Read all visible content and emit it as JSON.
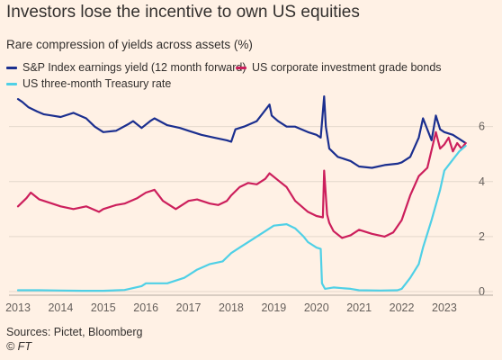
{
  "header": {
    "title": "Investors lose the incentive to own US equities",
    "subtitle": "Rare compression of yields across assets (%)"
  },
  "footer": {
    "sources": "Sources: Pictet, Bloomberg",
    "credit": "© FT"
  },
  "colors": {
    "background": "#fff1e5",
    "sp_earnings": "#1b2f8f",
    "corp_bonds": "#cc1f5c",
    "treasury": "#4fd0e6",
    "grid": "#e4d8cc"
  },
  "chart_data": {
    "type": "line",
    "title": "Rare compression of yields across assets (%)",
    "xlabel": "",
    "ylabel": "",
    "xlim": [
      2013.0,
      2023.55
    ],
    "ylim": [
      0,
      7.2
    ],
    "y_ticks": [
      0,
      2,
      4,
      6
    ],
    "y_tick_labels": [
      "0",
      "2",
      "4",
      "6"
    ],
    "x_ticks": [
      2013,
      2014,
      2015,
      2016,
      2017,
      2018,
      2019,
      2020,
      2021,
      2022,
      2023
    ],
    "x_tick_labels": [
      "2013",
      "2014",
      "2015",
      "2016",
      "2017",
      "2018",
      "2019",
      "2020",
      "2021",
      "2022",
      "2023"
    ],
    "y_axis_position": "right",
    "grid": true,
    "legend_placement": "top-left",
    "series": [
      {
        "name": "S&P Index earnings yield (12 month forward)",
        "color": "#1b2f8f",
        "x": [
          2013.0,
          2013.1,
          2013.25,
          2013.45,
          2013.6,
          2013.8,
          2014.0,
          2014.3,
          2014.6,
          2014.8,
          2015.0,
          2015.3,
          2015.6,
          2015.7,
          2015.9,
          2016.1,
          2016.2,
          2016.5,
          2016.8,
          2017.0,
          2017.3,
          2017.6,
          2017.9,
          2018.0,
          2018.1,
          2018.3,
          2018.6,
          2018.9,
          2018.95,
          2019.1,
          2019.3,
          2019.5,
          2019.8,
          2020.0,
          2020.1,
          2020.18,
          2020.22,
          2020.3,
          2020.5,
          2020.8,
          2021.0,
          2021.3,
          2021.6,
          2021.9,
          2022.0,
          2022.2,
          2022.4,
          2022.5,
          2022.7,
          2022.8,
          2022.9,
          2023.0,
          2023.2,
          2023.4,
          2023.5
        ],
        "y": [
          7.0,
          6.9,
          6.7,
          6.55,
          6.45,
          6.4,
          6.35,
          6.5,
          6.3,
          6.0,
          5.8,
          5.85,
          6.1,
          6.2,
          5.95,
          6.2,
          6.3,
          6.05,
          5.95,
          5.85,
          5.7,
          5.6,
          5.5,
          5.45,
          5.9,
          6.0,
          6.2,
          6.8,
          6.4,
          6.2,
          6.0,
          6.0,
          5.8,
          5.7,
          5.6,
          7.1,
          6.0,
          5.2,
          4.9,
          4.75,
          4.55,
          4.5,
          4.6,
          4.65,
          4.7,
          4.9,
          5.6,
          6.3,
          5.5,
          6.4,
          5.9,
          5.8,
          5.7,
          5.5,
          5.4
        ]
      },
      {
        "name": "US corporate investment grade bonds",
        "color": "#cc1f5c",
        "x": [
          2013.0,
          2013.2,
          2013.3,
          2013.5,
          2013.8,
          2014.0,
          2014.3,
          2014.6,
          2014.9,
          2015.0,
          2015.3,
          2015.5,
          2015.8,
          2016.0,
          2016.2,
          2016.4,
          2016.7,
          2016.8,
          2017.0,
          2017.2,
          2017.5,
          2017.7,
          2017.9,
          2018.0,
          2018.2,
          2018.4,
          2018.6,
          2018.8,
          2018.9,
          2019.1,
          2019.3,
          2019.5,
          2019.8,
          2020.0,
          2020.15,
          2020.18,
          2020.25,
          2020.3,
          2020.4,
          2020.6,
          2020.8,
          2021.0,
          2021.3,
          2021.6,
          2021.8,
          2022.0,
          2022.2,
          2022.4,
          2022.6,
          2022.8,
          2022.9,
          2023.0,
          2023.1,
          2023.2,
          2023.3,
          2023.4,
          2023.5
        ],
        "y": [
          3.1,
          3.4,
          3.6,
          3.35,
          3.2,
          3.1,
          3.0,
          3.1,
          2.9,
          3.0,
          3.15,
          3.2,
          3.4,
          3.6,
          3.7,
          3.3,
          3.0,
          3.1,
          3.3,
          3.35,
          3.2,
          3.15,
          3.3,
          3.5,
          3.8,
          3.95,
          3.9,
          4.1,
          4.3,
          4.05,
          3.8,
          3.3,
          2.9,
          2.75,
          2.7,
          4.4,
          2.8,
          2.5,
          2.2,
          1.95,
          2.05,
          2.25,
          2.1,
          2.0,
          2.15,
          2.6,
          3.5,
          4.2,
          4.5,
          5.8,
          5.2,
          5.35,
          5.6,
          5.1,
          5.4,
          5.2,
          5.4
        ]
      },
      {
        "name": "US three-month Treasury rate",
        "color": "#4fd0e6",
        "x": [
          2013.0,
          2013.5,
          2014.0,
          2014.5,
          2015.0,
          2015.5,
          2015.9,
          2016.0,
          2016.5,
          2016.9,
          2017.0,
          2017.2,
          2017.5,
          2017.8,
          2018.0,
          2018.2,
          2018.5,
          2018.8,
          2019.0,
          2019.3,
          2019.5,
          2019.7,
          2019.8,
          2020.0,
          2020.1,
          2020.13,
          2020.2,
          2020.4,
          2020.8,
          2021.0,
          2021.5,
          2021.9,
          2022.0,
          2022.1,
          2022.2,
          2022.4,
          2022.5,
          2022.7,
          2022.9,
          2023.0,
          2023.2,
          2023.35,
          2023.5
        ],
        "y": [
          0.05,
          0.05,
          0.04,
          0.03,
          0.03,
          0.06,
          0.2,
          0.3,
          0.3,
          0.5,
          0.6,
          0.8,
          1.0,
          1.1,
          1.4,
          1.6,
          1.9,
          2.2,
          2.4,
          2.45,
          2.3,
          2.0,
          1.8,
          1.6,
          1.55,
          0.3,
          0.1,
          0.15,
          0.1,
          0.05,
          0.04,
          0.05,
          0.1,
          0.3,
          0.5,
          1.0,
          1.6,
          2.6,
          3.7,
          4.4,
          4.8,
          5.1,
          5.3
        ]
      }
    ]
  }
}
